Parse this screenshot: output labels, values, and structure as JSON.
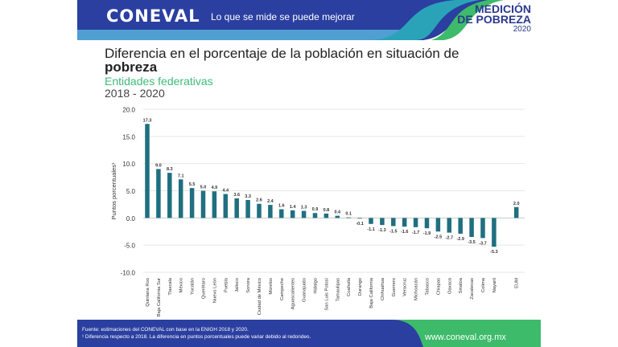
{
  "header": {
    "logo": "CONEVAL",
    "tagline": "Lo que se mide se puede mejorar",
    "badge_line1": "MEDICIÓN",
    "badge_line2": "DE POBREZA",
    "badge_year": "2020"
  },
  "colors": {
    "header_blue": "#2b3fa0",
    "header_light": "#4fa0d0",
    "teal": "#2aa3b8",
    "green": "#3dbb6a",
    "bar": "#1f6f80"
  },
  "chart_data": {
    "type": "bar",
    "title": "Diferencia en el porcentaje de la población en situación de",
    "title_bold": "pobreza",
    "subtitle": "Entidades federativas",
    "period": "2018 - 2020",
    "ylabel": "Puntos porcentuales¹",
    "xlabel": "",
    "ylim": [
      -10,
      20
    ],
    "yticks": [
      "20.0",
      "15.0",
      "10.0",
      "5.0",
      "0.0",
      "-5.0",
      "-10.0"
    ],
    "grid": true,
    "categories": [
      "Quintana Roo",
      "Baja California Sur",
      "Tlaxcala",
      "México",
      "Yucatán",
      "Querétaro",
      "Nuevo León",
      "Puebla",
      "Jalisco",
      "Sonora",
      "Ciudad de México",
      "Morelos",
      "Campeche",
      "Aguascalientes",
      "Guanajuato",
      "Hidalgo",
      "San Luis Potosí",
      "Tamaulipas",
      "Coahuila",
      "Durango",
      "Baja California",
      "Chihuahua",
      "Guerrero",
      "Veracruz",
      "Michoacán",
      "Tabasco",
      "Chiapas",
      "Oaxaca",
      "Sinaloa",
      "Zacatecas",
      "Colima",
      "Nayarit",
      "EUM"
    ],
    "values": [
      17.3,
      9.0,
      8.3,
      7.1,
      5.5,
      5.0,
      4.9,
      4.4,
      3.6,
      3.3,
      2.6,
      2.4,
      1.6,
      1.4,
      1.3,
      0.9,
      0.8,
      0.4,
      0.1,
      -0.1,
      -1.1,
      -1.3,
      -1.5,
      -1.6,
      -1.7,
      -1.9,
      -2.5,
      -2.7,
      -2.9,
      -3.5,
      -3.7,
      -5.3,
      2.0
    ],
    "labels": [
      "17.3",
      "9.0",
      "8.3",
      "7.1",
      "5.5",
      "5.0",
      "4.9",
      "4.4",
      "3.6",
      "3.3",
      "2.6",
      "2.4",
      "1.6",
      "1.4",
      "1.3",
      "0.9",
      "0.8",
      "0.4",
      "0.1",
      "-0.1",
      "-1.1",
      "-1.3",
      "-1.5",
      "-1.6",
      "-1.7",
      "-1.9",
      "-2.5",
      "-2.7",
      "-2.9",
      "-3.5",
      "-3.7",
      "-5.3",
      "2.0"
    ]
  },
  "footer": {
    "source": "Fuente: estimaciones del CONEVAL con base en la ENIGH 2018 y 2020.",
    "note": "¹ Diferencia respecto a 2018. La diferencia en puntos porcentuales puede variar debido al redondeo.",
    "url": "www.coneval.org.mx"
  }
}
